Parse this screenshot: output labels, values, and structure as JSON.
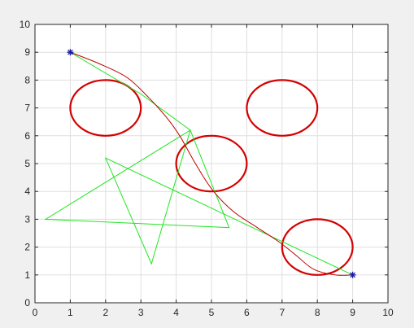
{
  "chart_data": {
    "type": "line",
    "title": "",
    "xlabel": "",
    "ylabel": "",
    "xlim": [
      0,
      10
    ],
    "ylim": [
      0,
      10
    ],
    "grid": true,
    "legend": "none",
    "x_ticks": [
      "0",
      "1",
      "2",
      "3",
      "4",
      "5",
      "6",
      "7",
      "8",
      "9",
      "10"
    ],
    "y_ticks": [
      "0",
      "1",
      "2",
      "3",
      "4",
      "5",
      "6",
      "7",
      "8",
      "9",
      "10"
    ],
    "colors": {
      "background": "#f0f0f0",
      "axes_background": "#ffffff",
      "grid": "#dfdfdf",
      "axis": "#262626",
      "obstacle": "#d40000",
      "green_path": "#22e622",
      "red_path": "#c00000",
      "marker": "#1a1aa6"
    },
    "obstacles": [
      {
        "cx": 2,
        "cy": 7,
        "r": 1
      },
      {
        "cx": 7,
        "cy": 7,
        "r": 1
      },
      {
        "cx": 5,
        "cy": 5,
        "r": 1
      },
      {
        "cx": 8,
        "cy": 2,
        "r": 1
      }
    ],
    "green_path": [
      [
        1,
        9
      ],
      [
        3,
        7.5
      ],
      [
        4.4,
        6.2
      ],
      [
        0.3,
        3
      ],
      [
        5.5,
        2.7
      ],
      [
        4.4,
        6.2
      ],
      [
        3.3,
        1.4
      ],
      [
        2,
        5.2
      ],
      [
        9,
        1
      ]
    ],
    "red_path": [
      [
        1,
        9
      ],
      [
        1.8,
        8.6
      ],
      [
        2.6,
        8.1
      ],
      [
        3.2,
        7.4
      ],
      [
        3.7,
        6.7
      ],
      [
        4.1,
        6
      ],
      [
        4.5,
        5.1
      ],
      [
        5,
        4.1
      ],
      [
        5.6,
        3.3
      ],
      [
        6.3,
        2.7
      ],
      [
        6.9,
        2.2
      ],
      [
        7.4,
        1.7
      ],
      [
        7.9,
        1.2
      ],
      [
        8.5,
        1
      ],
      [
        9,
        1
      ]
    ],
    "markers": [
      {
        "x": 1,
        "y": 9
      },
      {
        "x": 9,
        "y": 1
      }
    ]
  }
}
